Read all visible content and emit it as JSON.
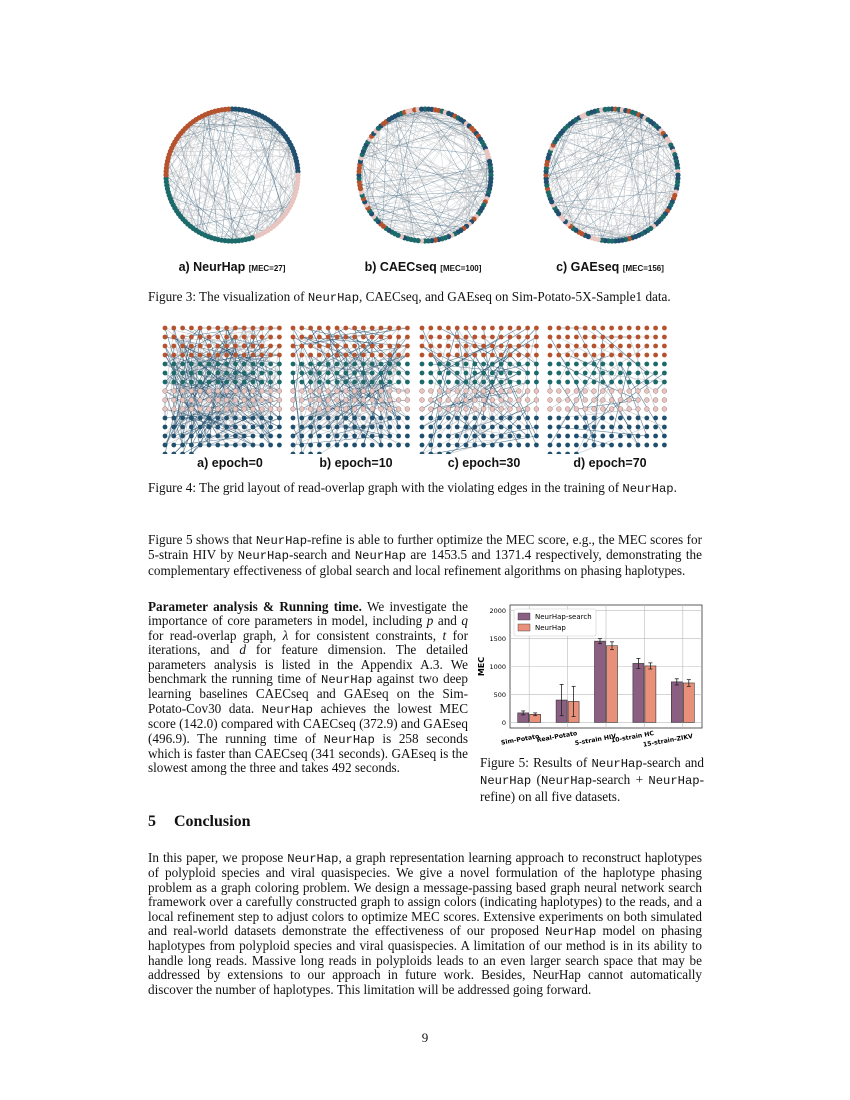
{
  "figure3": {
    "panels": [
      {
        "label": "a) NeurHap",
        "mec": "[MEC=27]"
      },
      {
        "label": "b) CAECseq",
        "mec": "[MEC=100]"
      },
      {
        "label": "c) GAEseq",
        "mec": "[MEC=156]"
      }
    ],
    "caption": [
      {
        "t": "Figure 3: The visualization of "
      },
      {
        "t": "NeurHap",
        "s": "mono"
      },
      {
        "t": ", CAECseq, and GAEseq on Sim-Potato-5X-Sample1 data."
      }
    ],
    "colors": {
      "brown": "#b5532f",
      "teal": "#1d6a6a",
      "blue": "#21506f",
      "pink": "#e8c5c0",
      "edge": "#a9adb3"
    }
  },
  "figure4": {
    "panels": [
      {
        "label": "a) epoch=0"
      },
      {
        "label": "b) epoch=10"
      },
      {
        "label": "c) epoch=30"
      },
      {
        "label": "d) epoch=70"
      }
    ],
    "caption": [
      {
        "t": "Figure 4: The grid layout of read-overlap graph with the violating edges in the training of "
      },
      {
        "t": "NeurHap",
        "s": "mono"
      },
      {
        "t": "."
      }
    ]
  },
  "paragraph1": [
    {
      "t": "Figure 5 shows that "
    },
    {
      "t": "NeurHap",
      "s": "mono"
    },
    {
      "t": "-refine is able to further optimize the MEC score, e.g., the MEC scores for 5-strain HIV by "
    },
    {
      "t": "NeurHap",
      "s": "mono"
    },
    {
      "t": "-search and "
    },
    {
      "t": "NeurHap",
      "s": "mono"
    },
    {
      "t": " are 1453.5 and 1371.4 respectively, demonstrating the complementary effectiveness of global search and local refinement algorithms on phasing haplotypes."
    }
  ],
  "paragraph2": [
    {
      "t": "Parameter analysis & Running time.",
      "s": "bold"
    },
    {
      "t": " We investigate the importance of core parameters in model, including "
    },
    {
      "t": "p",
      "s": "it"
    },
    {
      "t": " and "
    },
    {
      "t": "q",
      "s": "it"
    },
    {
      "t": " for read-overlap graph, "
    },
    {
      "t": "λ",
      "s": "it"
    },
    {
      "t": " for consistent constraints, "
    },
    {
      "t": "t",
      "s": "it"
    },
    {
      "t": " for iterations, and "
    },
    {
      "t": "d",
      "s": "it"
    },
    {
      "t": " for feature dimension. The detailed parameters analysis is listed in the Appendix A.3. We benchmark the running time of "
    },
    {
      "t": "NeurHap",
      "s": "mono"
    },
    {
      "t": " against two deep learning baselines CAECseq and GAEseq on the Sim-Potato-Cov30 data. "
    },
    {
      "t": "NeurHap",
      "s": "mono"
    },
    {
      "t": " achieves the lowest MEC score (142.0) compared with CAECseq (372.9) and GAEseq (496.9). The running time of "
    },
    {
      "t": "NeurHap",
      "s": "mono"
    },
    {
      "t": " is 258 seconds which is faster than CAECseq (341 seconds). GAEseq is the slowest among the three and takes 492 seconds."
    }
  ],
  "chart_data": {
    "type": "bar",
    "categories": [
      "Sim-Potato",
      "Real-Potato",
      "5-strain HIV",
      "10-strain HC",
      "15-strain-ZIKV"
    ],
    "series": [
      {
        "name": "NeurHap-search",
        "values": [
          170,
          400,
          1453.5,
          1055,
          725
        ],
        "errors": [
          35,
          280,
          45,
          90,
          55
        ],
        "color": "#8a5f82"
      },
      {
        "name": "NeurHap",
        "values": [
          145,
          375,
          1371.4,
          1010,
          705
        ],
        "errors": [
          25,
          270,
          70,
          55,
          60
        ],
        "color": "#e8907a"
      }
    ],
    "title": "",
    "xlabel": "",
    "ylabel": "MEC",
    "ylim": [
      -100,
      2100
    ],
    "yticks": [
      0,
      500,
      1000,
      1500,
      2000
    ],
    "grid": true,
    "legend": "top-left"
  },
  "figure5": {
    "caption": [
      {
        "t": "Figure 5: Results of "
      },
      {
        "t": "NeurHap",
        "s": "mono"
      },
      {
        "t": "-search and "
      },
      {
        "t": "NeurHap",
        "s": "mono"
      },
      {
        "t": " ("
      },
      {
        "t": "NeurHap",
        "s": "mono"
      },
      {
        "t": "-search + "
      },
      {
        "t": "NeurHap",
        "s": "mono"
      },
      {
        "t": "-refine) on all five datasets."
      }
    ]
  },
  "section": {
    "number": "5",
    "title": "Conclusion"
  },
  "paragraph3": [
    {
      "t": "In this paper, we propose "
    },
    {
      "t": "NeurHap",
      "s": "mono"
    },
    {
      "t": ", a graph representation learning approach to reconstruct haplotypes of polyploid species and viral quasispecies. We give a novel formulation of the haplotype phasing problem as a graph coloring problem. We design a message-passing based graph neural network search framework over a carefully constructed graph to assign colors (indicating haplotypes) to the reads, and a local refinement step to adjust colors to optimize MEC scores. Extensive experiments on both simulated and real-world datasets demonstrate the effectiveness of our proposed "
    },
    {
      "t": "NeurHap",
      "s": "mono"
    },
    {
      "t": " model on phasing haplotypes from polyploid species and viral quasispecies. A limitation of our method is in its ability to handle long reads. Massive long reads in polyploids leads to an even larger search space that may be addressed by extensions to our approach in future work. Besides, NeurHap cannot automatically discover the number of haplotypes. This limitation will be addressed going forward."
    }
  ],
  "page_number": "9"
}
